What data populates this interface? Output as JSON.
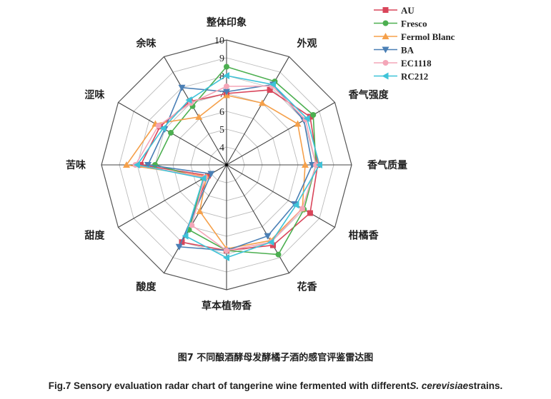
{
  "chart_data": {
    "type": "radar",
    "axes": [
      "整体印象",
      "外观",
      "香气强度",
      "香气质量",
      "柑橘香",
      "花香",
      "草本植物香",
      "酸度",
      "甜度",
      "苦味",
      "涩味",
      "余味"
    ],
    "rlim": [
      3,
      10
    ],
    "tick_labels": [
      "4",
      "5",
      "6",
      "7",
      "8",
      "9",
      "10"
    ],
    "grid": true,
    "legend_position": "top-right",
    "series": [
      {
        "name": "AU",
        "color": "#d9455a",
        "marker": "square",
        "values": [
          7.0,
          7.85,
          8.4,
          8.1,
          8.4,
          8.2,
          7.8,
          8.0,
          4.2,
          7.8,
          7.3,
          7.1
        ]
      },
      {
        "name": "Fresco",
        "color": "#4caf50",
        "marker": "circle",
        "values": [
          8.5,
          8.4,
          8.6,
          8.0,
          8.0,
          8.8,
          7.8,
          7.2,
          4.5,
          7.0,
          6.6,
          6.8
        ]
      },
      {
        "name": "Fermol Blanc",
        "color": "#f5a04a",
        "marker": "triangle-up",
        "values": [
          6.9,
          7.0,
          7.6,
          7.4,
          7.9,
          7.9,
          7.7,
          6.0,
          4.3,
          8.6,
          7.6,
          6.1
        ]
      },
      {
        "name": "BA",
        "color": "#4a7fb5",
        "marker": "triangle-down",
        "values": [
          7.1,
          8.2,
          8.0,
          7.8,
          7.4,
          7.6,
          7.8,
          8.3,
          4.0,
          7.4,
          7.0,
          8.0
        ]
      },
      {
        "name": "EC1118",
        "color": "#f4a6b8",
        "marker": "circle",
        "values": [
          7.4,
          8.1,
          8.1,
          8.0,
          7.9,
          8.0,
          7.8,
          6.9,
          4.4,
          8.1,
          7.4,
          7.0
        ]
      },
      {
        "name": "RC212",
        "color": "#3ec3d8",
        "marker": "triangle-left",
        "values": [
          8.0,
          8.2,
          8.2,
          8.2,
          7.5,
          8.0,
          8.2,
          7.6,
          4.5,
          8.0,
          7.1,
          7.2
        ]
      }
    ]
  },
  "caption_cn": "图7 不同酿酒酵母发酵橘子酒的感官评鉴雷达图",
  "caption_en": {
    "prefix": "Fig.7 Sensory evaluation radar chart of tangerine wine fermented with different",
    "species": "S. cerevisiae",
    "suffix": "strains."
  }
}
